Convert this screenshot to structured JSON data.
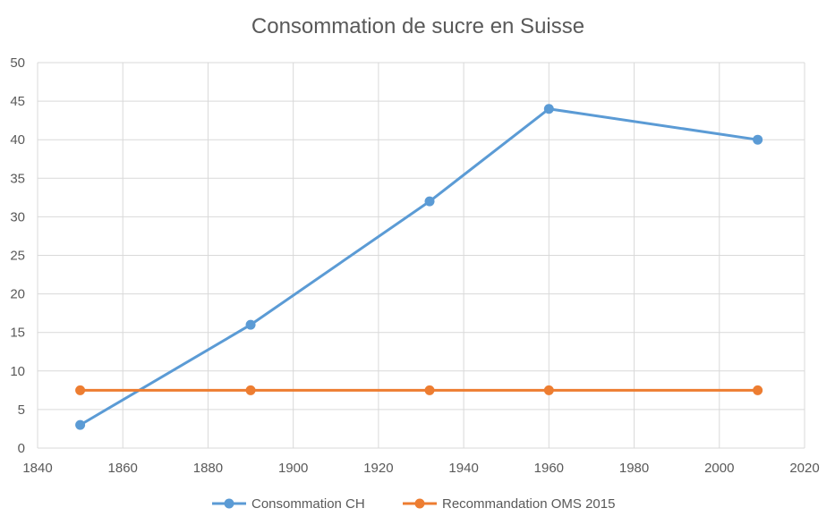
{
  "chart_data": {
    "type": "line",
    "title": "Consommation de sucre en Suisse",
    "xlabel": "",
    "ylabel": "",
    "xlim": [
      1840,
      2020
    ],
    "ylim": [
      0,
      50
    ],
    "x_ticks": [
      1840,
      1860,
      1880,
      1900,
      1920,
      1940,
      1960,
      1980,
      2000,
      2020
    ],
    "y_ticks": [
      0,
      5,
      10,
      15,
      20,
      25,
      30,
      35,
      40,
      45,
      50
    ],
    "grid": true,
    "legend_position": "bottom",
    "series": [
      {
        "name": "Consommation CH",
        "color": "#5B9BD5",
        "marker": "circle",
        "x": [
          1850,
          1890,
          1932,
          1960,
          2009
        ],
        "y": [
          3,
          16,
          32,
          44,
          40
        ]
      },
      {
        "name": "Recommandation OMS 2015",
        "color": "#ED7D31",
        "marker": "circle",
        "x": [
          1850,
          1890,
          1932,
          1960,
          2009
        ],
        "y": [
          7.5,
          7.5,
          7.5,
          7.5,
          7.5
        ]
      }
    ]
  },
  "colors": {
    "grid": "#D9D9D9",
    "axis_text": "#595959",
    "background": "#FFFFFF"
  }
}
